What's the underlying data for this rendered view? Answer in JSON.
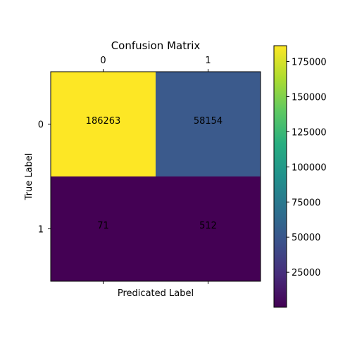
{
  "chart_data": {
    "type": "heatmap",
    "title": "Confusion Matrix",
    "xlabel": "Predicated Label",
    "ylabel": "True Label",
    "x_categories": [
      "0",
      "1"
    ],
    "y_categories": [
      "0",
      "1"
    ],
    "values": [
      [
        186263,
        58154
      ],
      [
        71,
        512
      ]
    ],
    "cell_labels": [
      [
        "186263",
        "58154"
      ],
      [
        "71",
        "512"
      ]
    ],
    "colormap": "viridis",
    "cell_colors": [
      [
        "#fde725",
        "#3b5a8c"
      ],
      [
        "#440154",
        "#440154"
      ]
    ],
    "colorbar": {
      "range": [
        71,
        186263
      ],
      "ticks": [
        25000,
        50000,
        75000,
        100000,
        125000,
        150000,
        175000
      ],
      "tick_labels": [
        "25000",
        "50000",
        "75000",
        "100000",
        "125000",
        "150000",
        "175000"
      ]
    },
    "x_ticks_position": "top",
    "grid": false
  }
}
